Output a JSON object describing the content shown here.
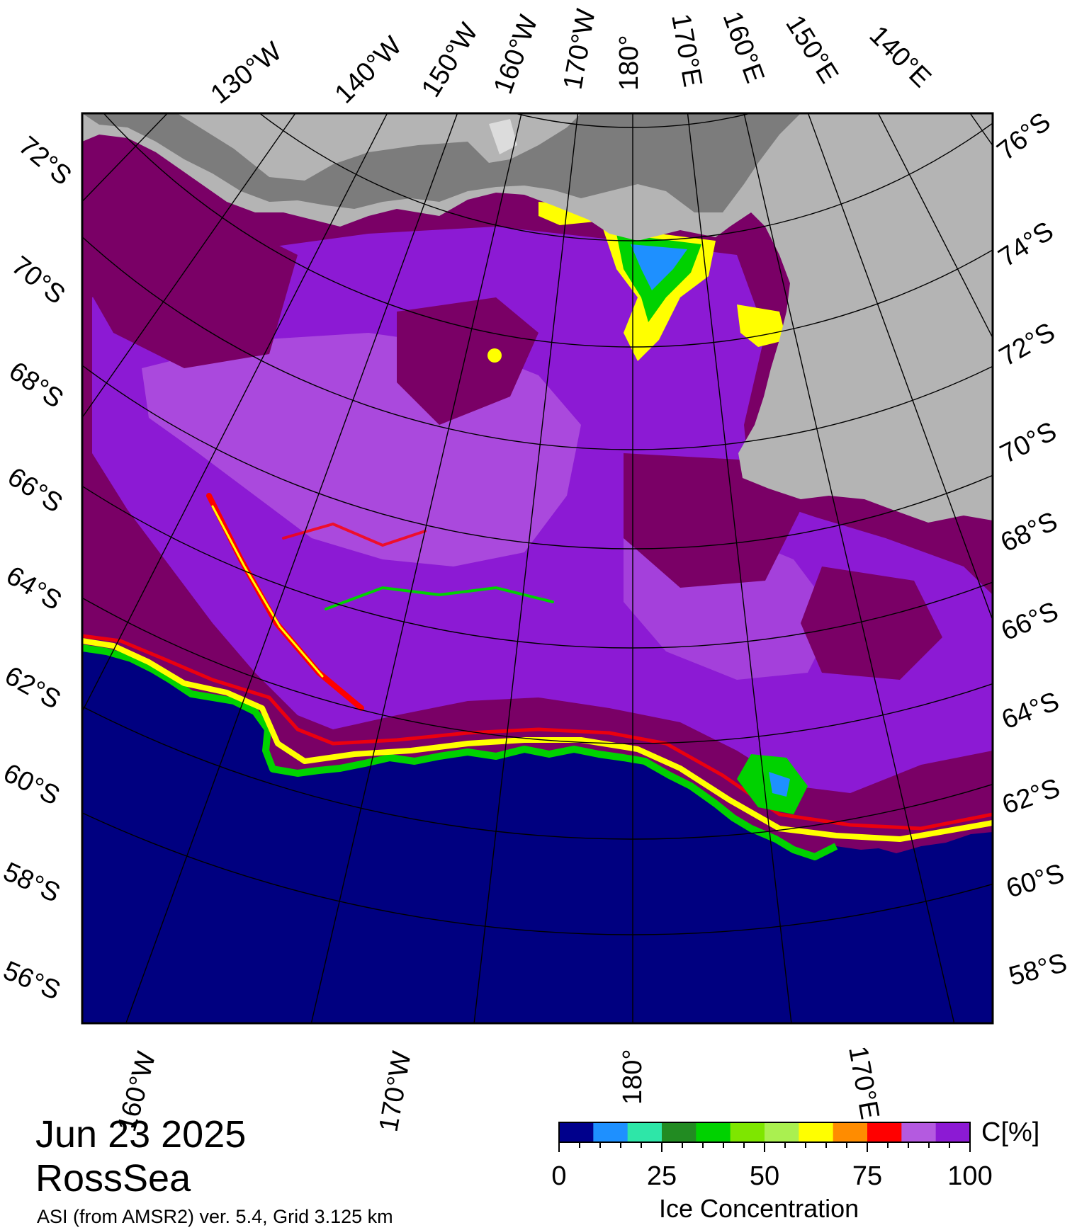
{
  "header": {
    "date": "Jun 23 2025",
    "region": "RossSea",
    "credit": "ASI (from AMSR2) ver. 5.4,  Grid 3.125 km"
  },
  "map": {
    "top_lon_labels": [
      "130°W",
      "140°W",
      "150°W",
      "160°W",
      "170°W",
      "180°",
      "170°E",
      "160°E",
      "150°E",
      "140°E"
    ],
    "left_lat_labels": [
      "72°S",
      "70°S",
      "68°S",
      "66°S",
      "64°S",
      "62°S",
      "60°S",
      "58°S",
      "56°S"
    ],
    "right_lat_labels": [
      "76°S",
      "74°S",
      "72°S",
      "70°S",
      "68°S",
      "66°S",
      "64°S",
      "62°S",
      "60°S",
      "58°S"
    ],
    "bottom_lon_labels": [
      "160°W",
      "170°W",
      "180°",
      "170°E"
    ],
    "colors": {
      "ocean": "#000080",
      "land_light": "#b4b4b4",
      "land_dark": "#7c7c7c",
      "ice_dense": "#7a0066",
      "ice_high": "#8c1ad4",
      "ice_mid": "#b45ae0"
    }
  },
  "colorbar": {
    "unit": "C[%]",
    "title": "Ice Concentration",
    "ticks": [
      "0",
      "25",
      "50",
      "75",
      "100"
    ],
    "colors": [
      "#00008c",
      "#1e90ff",
      "#2ee6a8",
      "#228b22",
      "#00d200",
      "#7ee600",
      "#aaf050",
      "#ffff00",
      "#ff8c00",
      "#ff0000",
      "#b45ae0",
      "#8c1ad4"
    ]
  }
}
